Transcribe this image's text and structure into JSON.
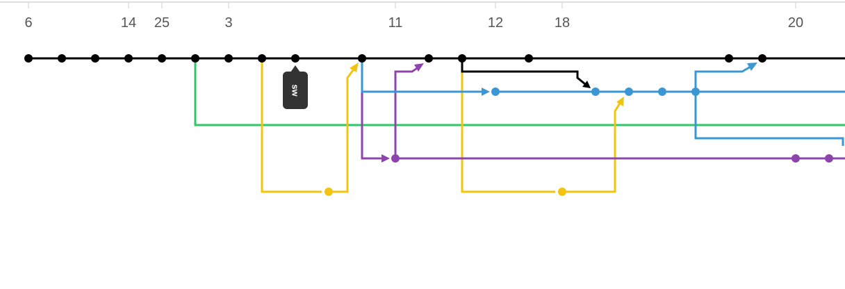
{
  "timeline": {
    "day_labels": [
      "6",
      "14",
      "25",
      "3",
      "11",
      "12",
      "18",
      "20"
    ]
  },
  "tag": {
    "text": "sw"
  },
  "branches": {
    "master": {
      "color": "#000000"
    },
    "blue": {
      "color": "#3a97d6"
    },
    "green": {
      "color": "#2ec56b"
    },
    "purple": {
      "color": "#8e44ad"
    },
    "yellow": {
      "color": "#f1c40f"
    }
  }
}
